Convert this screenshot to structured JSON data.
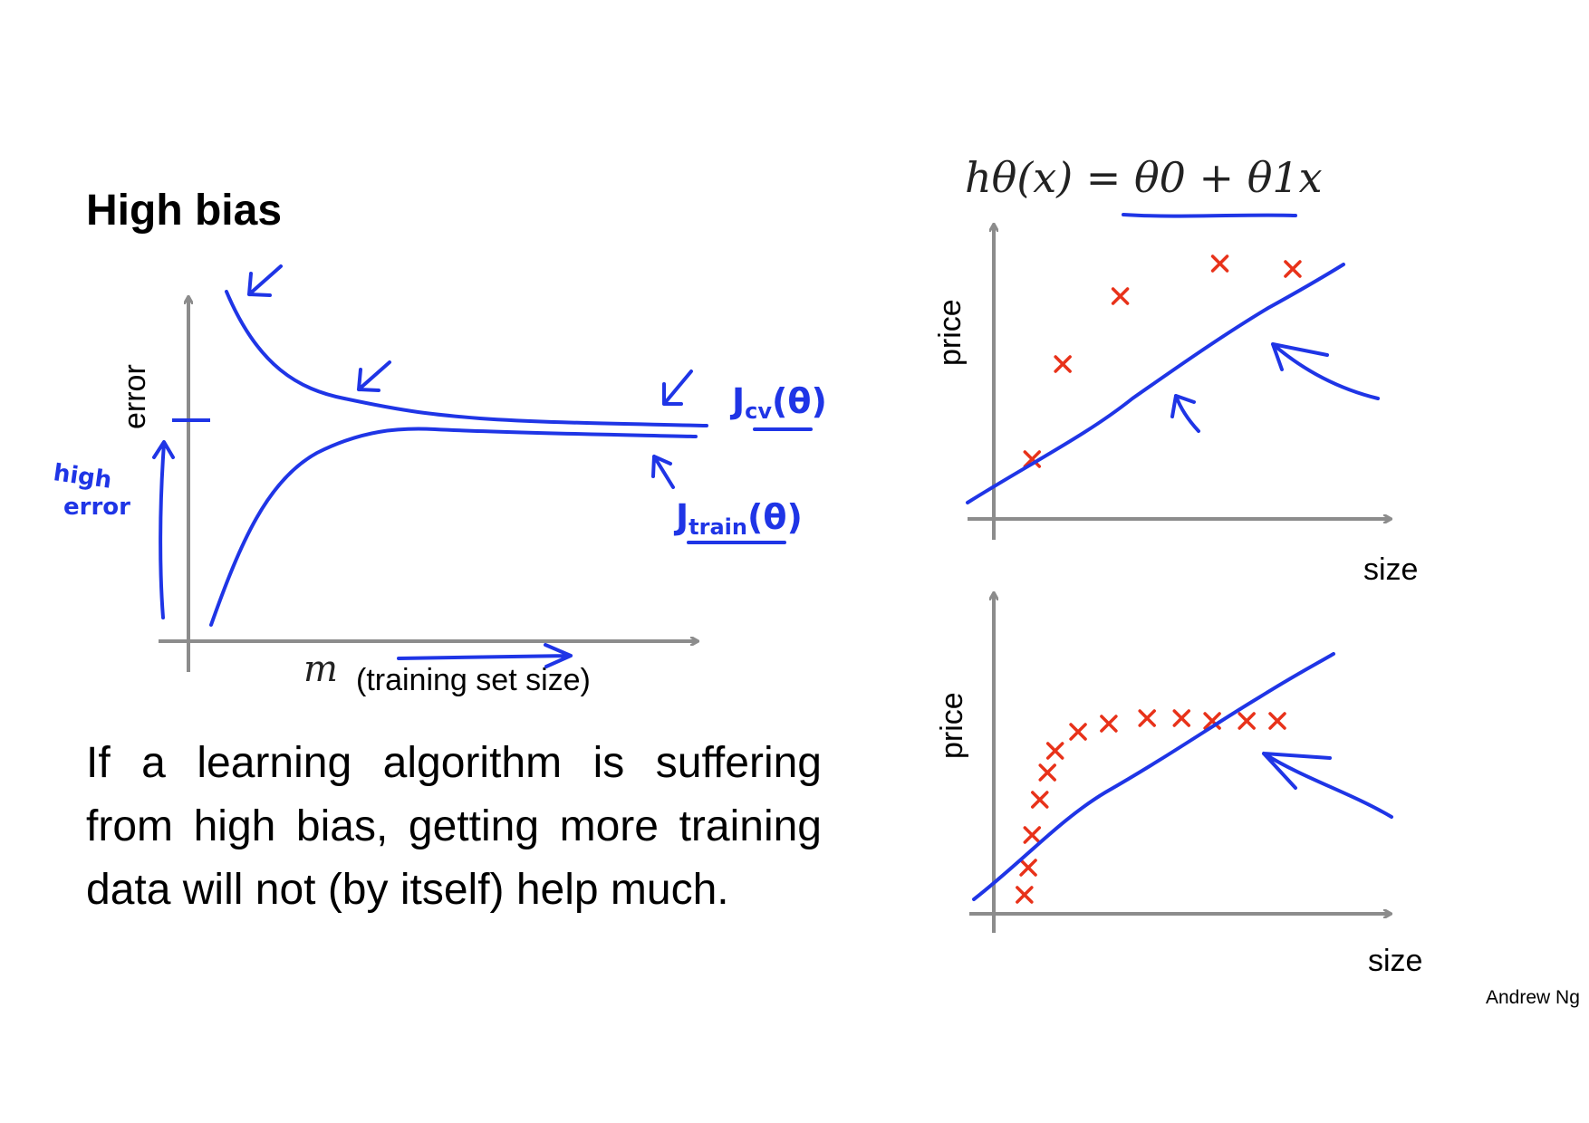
{
  "slide": {
    "title": "High bias",
    "body": "If a learning algorithm is suffering from high bias, getting more training data will not (by itself) help much.",
    "credit": "Andrew Ng"
  },
  "learning_curve": {
    "y_label": "error",
    "x_var": "m",
    "x_label": "(training set size)",
    "note_high_1": "high",
    "note_high_2": "error",
    "cv_label": "J",
    "cv_sub": "cv",
    "train_label": "J",
    "train_sub": "train",
    "theta_arg": "(θ)"
  },
  "plots": {
    "formula": "hθ(x) = θ0 + θ1x",
    "top": {
      "y_label": "price",
      "x_label": "size"
    },
    "bottom": {
      "y_label": "price",
      "x_label": "size"
    }
  },
  "colors": {
    "ink": "#1f35e6",
    "axis": "#8c8c8c",
    "marker": "#e8321a"
  },
  "chart_data": [
    {
      "type": "scatter",
      "xlabel": "size",
      "ylabel": "price",
      "points": [
        [
          0.1,
          0.22
        ],
        [
          0.18,
          0.57
        ],
        [
          0.33,
          0.82
        ],
        [
          0.59,
          0.94
        ],
        [
          0.78,
          0.92
        ]
      ],
      "fit_line": {
        "intercept": 0.05,
        "slope": 0.95
      }
    },
    {
      "type": "scatter",
      "xlabel": "size",
      "ylabel": "price",
      "points": [
        [
          0.08,
          0.07
        ],
        [
          0.09,
          0.17
        ],
        [
          0.1,
          0.29
        ],
        [
          0.12,
          0.42
        ],
        [
          0.14,
          0.52
        ],
        [
          0.16,
          0.6
        ],
        [
          0.22,
          0.67
        ],
        [
          0.3,
          0.7
        ],
        [
          0.4,
          0.72
        ],
        [
          0.49,
          0.72
        ],
        [
          0.57,
          0.71
        ],
        [
          0.66,
          0.71
        ],
        [
          0.74,
          0.71
        ]
      ],
      "fit_line": {
        "intercept": 0.05,
        "slope": 0.95
      }
    }
  ]
}
